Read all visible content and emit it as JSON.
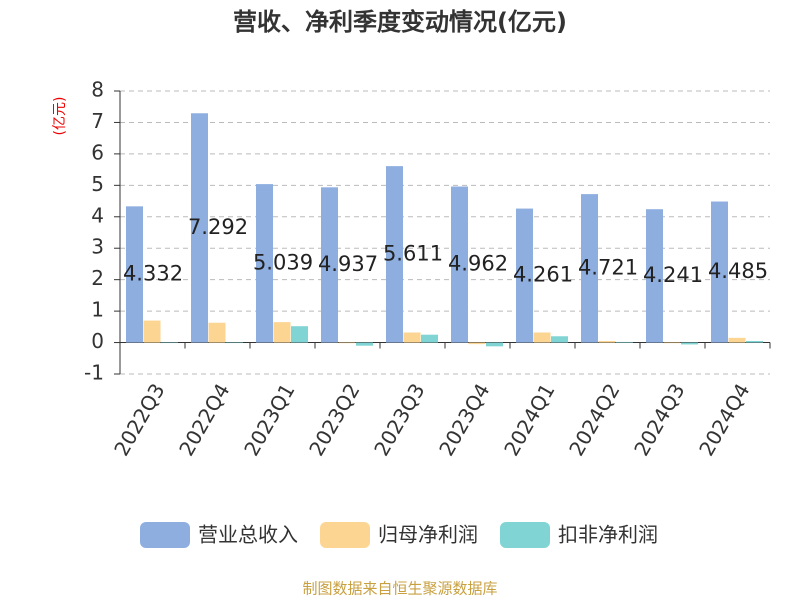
{
  "chart_data": {
    "type": "bar",
    "title": "营收、净利季度变动情况(亿元)",
    "y_label": "(亿元)",
    "categories": [
      "2022Q3",
      "2022Q4",
      "2023Q1",
      "2023Q2",
      "2023Q3",
      "2023Q4",
      "2024Q1",
      "2024Q2",
      "2024Q3",
      "2024Q4"
    ],
    "series": [
      {
        "name": "营业总收入",
        "color": "#8eaee0",
        "values": [
          4.332,
          7.292,
          5.039,
          4.937,
          5.611,
          4.962,
          4.261,
          4.721,
          4.241,
          4.485
        ],
        "show_labels": true
      },
      {
        "name": "归母净利润",
        "color": "#fdd593",
        "values": [
          0.7,
          0.63,
          0.65,
          -0.02,
          0.32,
          -0.05,
          0.32,
          0.05,
          -0.02,
          0.15
        ]
      },
      {
        "name": "扣非净利润",
        "color": "#80d4d4",
        "values": [
          0.0,
          0.0,
          0.52,
          -0.1,
          0.25,
          -0.12,
          0.2,
          0.02,
          -0.06,
          0.05
        ]
      }
    ],
    "ylim": [
      -1,
      8
    ],
    "yticks": [
      -1,
      0,
      1,
      2,
      3,
      4,
      5,
      6,
      7,
      8
    ],
    "grid": true,
    "legend": "bottom",
    "source": "制图数据来自恒生聚源数据库"
  }
}
